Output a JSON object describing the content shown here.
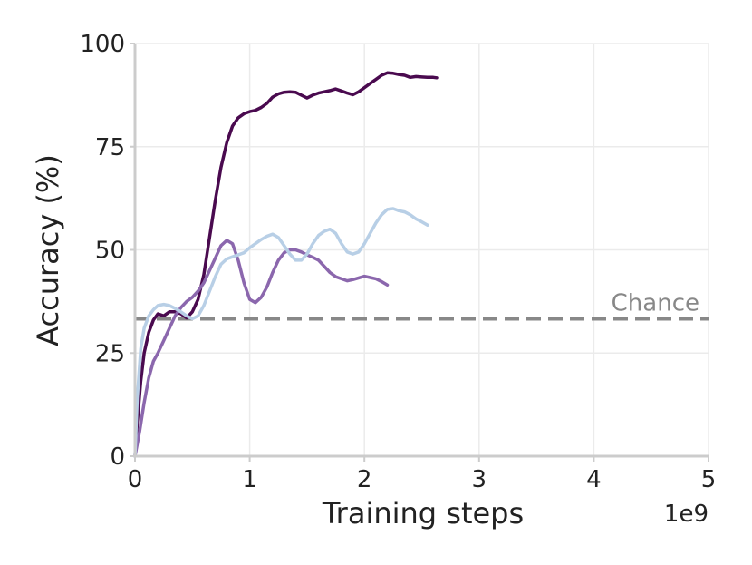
{
  "chart_data": {
    "type": "line",
    "title": "",
    "xlabel": "Training steps",
    "ylabel": "Accuracy (%)",
    "x_multiplier_label": "1e9",
    "xlim": [
      0,
      5
    ],
    "ylim": [
      0,
      100
    ],
    "x_ticks": [
      0,
      1,
      2,
      3,
      4,
      5
    ],
    "x_tick_labels": [
      "0",
      "1",
      "2",
      "3",
      "4",
      "5"
    ],
    "y_ticks": [
      0,
      25,
      50,
      75,
      100
    ],
    "y_tick_labels": [
      "0",
      "25",
      "50",
      "75",
      "100"
    ],
    "grid": true,
    "legend": "none",
    "reference_line": {
      "label": "Chance",
      "y": 33.3,
      "color": "#888888",
      "style": "dashed"
    },
    "series": [
      {
        "color": "#4a0a4f",
        "x": [
          0.0,
          0.02,
          0.05,
          0.08,
          0.12,
          0.16,
          0.2,
          0.25,
          0.3,
          0.35,
          0.4,
          0.45,
          0.5,
          0.55,
          0.6,
          0.65,
          0.7,
          0.75,
          0.8,
          0.85,
          0.9,
          0.95,
          1.0,
          1.05,
          1.1,
          1.15,
          1.2,
          1.25,
          1.3,
          1.35,
          1.4,
          1.45,
          1.5,
          1.55,
          1.6,
          1.65,
          1.7,
          1.75,
          1.8,
          1.85,
          1.9,
          1.95,
          2.0,
          2.05,
          2.1,
          2.15,
          2.2,
          2.25,
          2.3,
          2.35,
          2.4,
          2.45,
          2.5,
          2.55,
          2.6,
          2.63
        ],
        "y": [
          0,
          8,
          18,
          25,
          30,
          33,
          34.5,
          34,
          35,
          35,
          34.5,
          33.5,
          35,
          38,
          44,
          53,
          62,
          70,
          76,
          80,
          82,
          83,
          83.5,
          83.8,
          84.5,
          85.5,
          87,
          87.8,
          88.2,
          88.3,
          88.2,
          87.5,
          86.8,
          87.5,
          88,
          88.3,
          88.6,
          89,
          88.5,
          88,
          87.6,
          88.3,
          89.3,
          90.3,
          91.3,
          92.3,
          92.9,
          92.8,
          92.5,
          92.3,
          91.8,
          92,
          91.9,
          91.8,
          91.8,
          91.7
        ]
      },
      {
        "color": "#8b67ad",
        "x": [
          0.0,
          0.04,
          0.08,
          0.12,
          0.16,
          0.2,
          0.25,
          0.3,
          0.35,
          0.4,
          0.45,
          0.5,
          0.55,
          0.6,
          0.65,
          0.7,
          0.75,
          0.8,
          0.85,
          0.9,
          0.95,
          1.0,
          1.05,
          1.1,
          1.15,
          1.2,
          1.25,
          1.3,
          1.35,
          1.4,
          1.45,
          1.5,
          1.55,
          1.6,
          1.65,
          1.7,
          1.75,
          1.8,
          1.85,
          1.9,
          1.95,
          2.0,
          2.05,
          2.1,
          2.15,
          2.2
        ],
        "y": [
          0,
          6,
          13,
          19,
          23,
          25,
          28,
          31,
          34,
          36,
          37.5,
          38.5,
          40,
          42,
          45,
          48,
          51,
          52.3,
          51.5,
          47.5,
          42,
          38,
          37.2,
          38.5,
          41,
          44.5,
          47.5,
          49.3,
          50,
          50,
          49.5,
          48.8,
          48.2,
          47.5,
          46,
          44.5,
          43.5,
          43,
          42.5,
          42.8,
          43.2,
          43.6,
          43.3,
          43,
          42.3,
          41.5
        ]
      },
      {
        "color": "#b8cfe6",
        "x": [
          0.0,
          0.02,
          0.05,
          0.08,
          0.12,
          0.16,
          0.2,
          0.25,
          0.3,
          0.35,
          0.4,
          0.45,
          0.5,
          0.55,
          0.6,
          0.65,
          0.7,
          0.75,
          0.8,
          0.85,
          0.9,
          0.95,
          1.0,
          1.05,
          1.1,
          1.15,
          1.2,
          1.25,
          1.3,
          1.35,
          1.4,
          1.45,
          1.5,
          1.55,
          1.6,
          1.65,
          1.7,
          1.75,
          1.8,
          1.85,
          1.9,
          1.95,
          2.0,
          2.05,
          2.1,
          2.15,
          2.2,
          2.25,
          2.3,
          2.35,
          2.4,
          2.45,
          2.5,
          2.55
        ],
        "y": [
          0,
          14,
          26,
          31,
          34,
          35.5,
          36.5,
          36.8,
          36.5,
          35.8,
          35,
          34,
          33.3,
          34,
          36.5,
          40,
          43.5,
          46.5,
          47.8,
          48.3,
          48.8,
          49.3,
          50.5,
          51.5,
          52.5,
          53.3,
          53.8,
          53,
          51,
          49,
          47.5,
          47.5,
          49,
          51.5,
          53.5,
          54.5,
          55,
          54,
          51.5,
          49.5,
          49,
          49.5,
          51.5,
          54,
          56.5,
          58.5,
          59.8,
          60,
          59.5,
          59.2,
          58.5,
          57.5,
          56.8,
          56
        ]
      }
    ]
  }
}
